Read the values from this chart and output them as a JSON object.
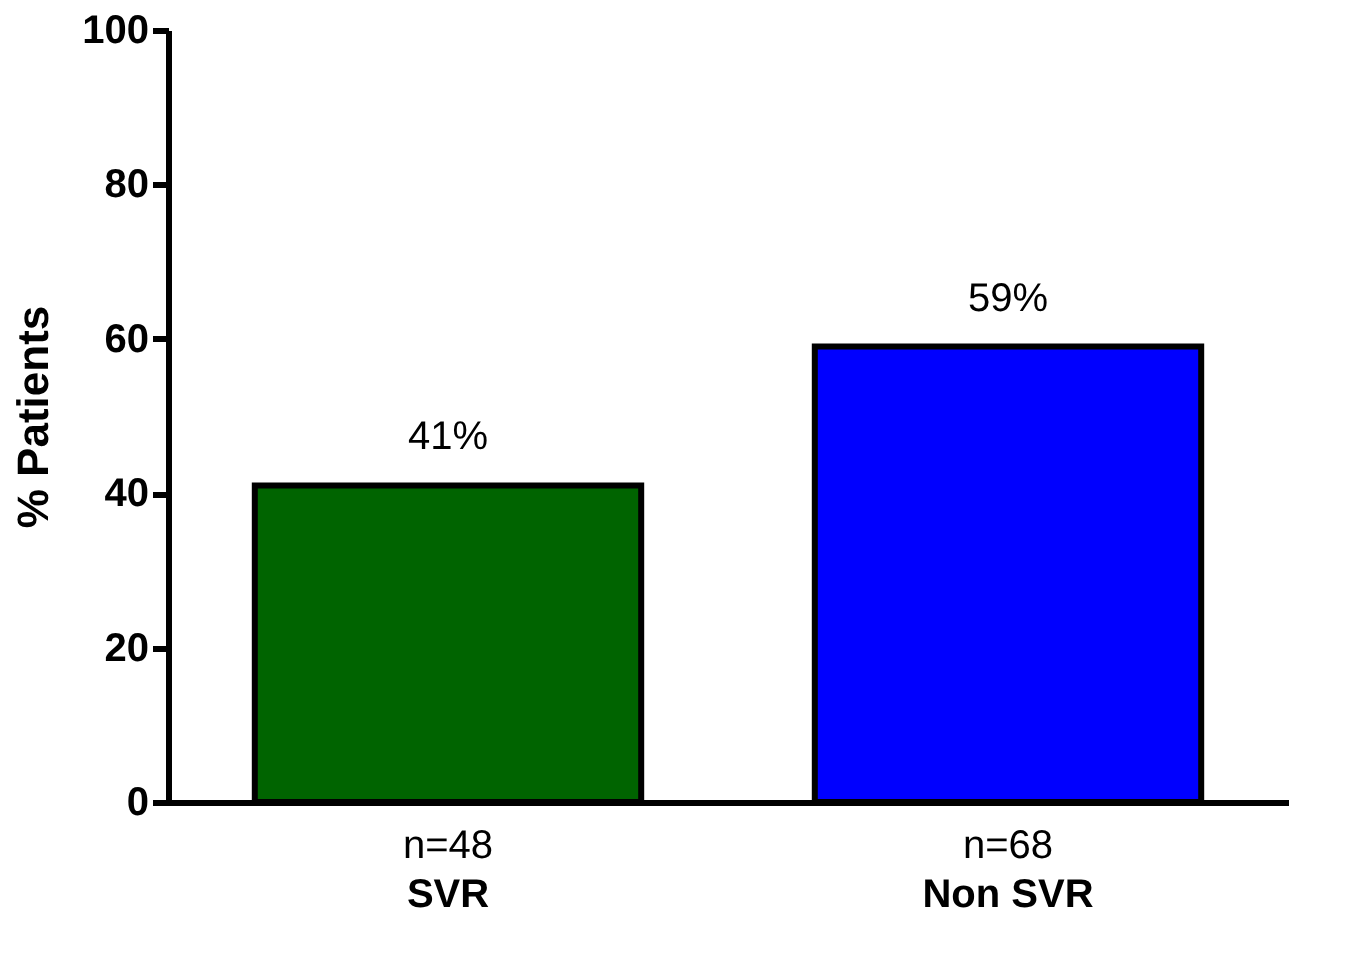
{
  "chart_data": {
    "type": "bar",
    "ylabel": "% Patients",
    "categories": [
      "SVR",
      "Non SVR"
    ],
    "values": [
      41,
      59
    ],
    "colors": [
      "#006400",
      "#0000ff"
    ],
    "value_labels": [
      "41%",
      "59%"
    ],
    "annotations": [
      "n=48",
      "n=68"
    ],
    "ylim": [
      0,
      100
    ],
    "yticks": [
      0,
      20,
      40,
      60,
      80,
      100
    ],
    "grid": false
  }
}
